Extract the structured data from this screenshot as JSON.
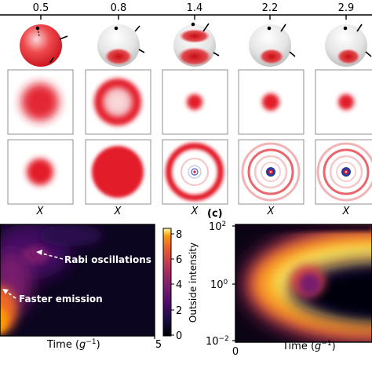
{
  "top_axis": {
    "ticks": [
      "0.5",
      "0.8",
      "1.4",
      "2.2",
      "2.9"
    ]
  },
  "row_labels": {
    "x_label": "X"
  },
  "panel_c": {
    "label": "(c)"
  },
  "left_plot": {
    "annotations": {
      "rabi": "Rabi oscillations",
      "faster": "Faster emission"
    },
    "colorbar": {
      "label": "Outside intensity",
      "ticks": [
        "8",
        "6",
        "4",
        "2",
        "0"
      ]
    },
    "x_axis": {
      "label_prefix": "Time (",
      "label_unit": "g",
      "label_exp": "−1",
      "label_suffix": ")",
      "max_tick": "5"
    }
  },
  "right_plot": {
    "y_ticks": {
      "top_base": "10",
      "top_exp": "2",
      "mid_base": "10",
      "mid_exp": "0",
      "bot_base": "10",
      "bot_exp": "−2"
    },
    "x_axis": {
      "zero_tick": "0",
      "label_prefix": "Time (",
      "label_unit": "g",
      "label_exp": "−1",
      "label_suffix": ")"
    }
  },
  "colors": {
    "sphere_red": "#e0141e",
    "ring_blue": "#2a3a9c",
    "inferno_dark": "#0a0518",
    "inferno_purple": "#4a0a68",
    "inferno_orange": "#f07a1a",
    "inferno_yellow": "#f8e060"
  }
}
